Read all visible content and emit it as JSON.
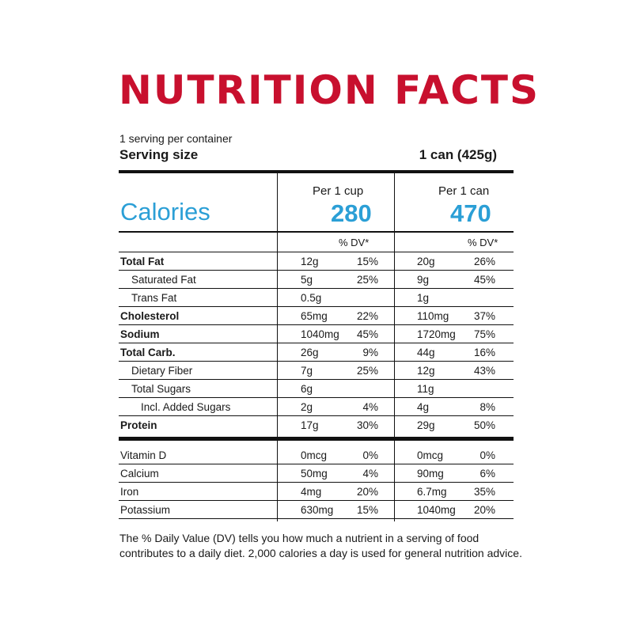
{
  "colors": {
    "title": "#c8102e",
    "accent": "#2b9fd6",
    "text": "#1a1a1a",
    "rule": "#111111"
  },
  "title": "NUTRITION FACTS",
  "servings_per_container": "1 serving per container",
  "serving_size": {
    "label": "Serving size",
    "value": "1 can (425g)"
  },
  "calories": {
    "label": "Calories",
    "columns": [
      {
        "header": "Per 1 cup",
        "value": "280"
      },
      {
        "header": "Per 1 can",
        "value": "470"
      }
    ]
  },
  "dv_header": "% DV*",
  "nutrients": [
    {
      "label": "Total Fat",
      "style": "bold",
      "cup_amount": "12g",
      "cup_dv": "15%",
      "can_amount": "20g",
      "can_dv": "26%"
    },
    {
      "label": "Saturated Fat",
      "style": "ind1",
      "cup_amount": "5g",
      "cup_dv": "25%",
      "can_amount": "9g",
      "can_dv": "45%"
    },
    {
      "label": "Trans Fat",
      "style": "ind1",
      "cup_amount": "0.5g",
      "cup_dv": "",
      "can_amount": "1g",
      "can_dv": ""
    },
    {
      "label": "Cholesterol",
      "style": "bold",
      "cup_amount": "65mg",
      "cup_dv": "22%",
      "can_amount": "110mg",
      "can_dv": "37%"
    },
    {
      "label": "Sodium",
      "style": "bold",
      "cup_amount": "1040mg",
      "cup_dv": "45%",
      "can_amount": "1720mg",
      "can_dv": "75%"
    },
    {
      "label": "Total Carb.",
      "style": "bold",
      "cup_amount": "26g",
      "cup_dv": "9%",
      "can_amount": "44g",
      "can_dv": "16%"
    },
    {
      "label": "Dietary Fiber",
      "style": "ind1",
      "cup_amount": "7g",
      "cup_dv": "25%",
      "can_amount": "12g",
      "can_dv": "43%"
    },
    {
      "label": "Total Sugars",
      "style": "ind1",
      "cup_amount": "6g",
      "cup_dv": "",
      "can_amount": "11g",
      "can_dv": ""
    },
    {
      "label": "Incl. Added Sugars",
      "style": "ind2",
      "cup_amount": "2g",
      "cup_dv": "4%",
      "can_amount": "4g",
      "can_dv": "8%"
    },
    {
      "label": "Protein",
      "style": "bold",
      "cup_amount": "17g",
      "cup_dv": "30%",
      "can_amount": "29g",
      "can_dv": "50%"
    }
  ],
  "vitamins": [
    {
      "label": "Vitamin D",
      "cup_amount": "0mcg",
      "cup_dv": "0%",
      "can_amount": "0mcg",
      "can_dv": "0%"
    },
    {
      "label": "Calcium",
      "cup_amount": "50mg",
      "cup_dv": "4%",
      "can_amount": "90mg",
      "can_dv": "6%"
    },
    {
      "label": "Iron",
      "cup_amount": "4mg",
      "cup_dv": "20%",
      "can_amount": "6.7mg",
      "can_dv": "35%"
    },
    {
      "label": "Potassium",
      "cup_amount": "630mg",
      "cup_dv": "15%",
      "can_amount": "1040mg",
      "can_dv": "20%"
    }
  ],
  "footnote": "The % Daily Value (DV) tells you how much a nutrient in a serving of food contributes to a daily diet. 2,000 calories a day is used for general nutrition advice."
}
